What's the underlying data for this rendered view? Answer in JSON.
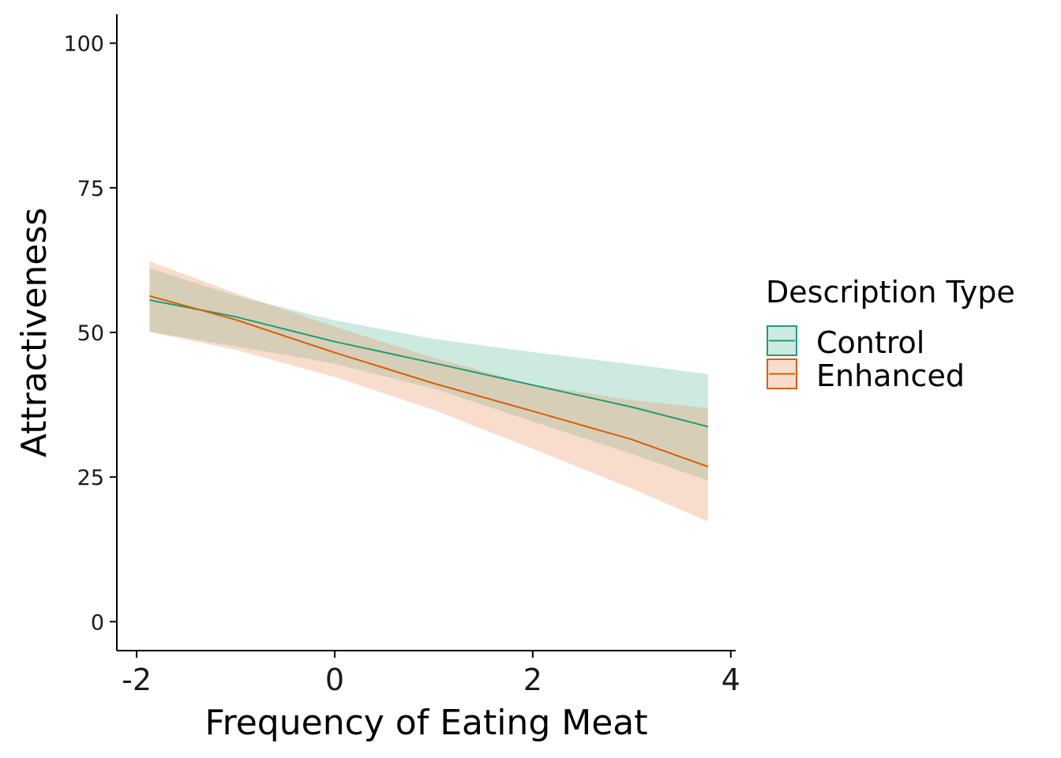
{
  "chart_data": {
    "type": "line",
    "title": "",
    "xlabel": "Frequency of Eating Meat",
    "ylabel": "Attractiveness",
    "xlim": [
      -2.2,
      4.05
    ],
    "ylim": [
      -5,
      105
    ],
    "x_ticks": [
      -2,
      0,
      2,
      4
    ],
    "x_tick_labels": [
      "-2",
      "0",
      "2",
      "4"
    ],
    "y_ticks": [
      0,
      25,
      50,
      75,
      100
    ],
    "y_tick_labels": [
      "0",
      "25",
      "50",
      "75",
      "100"
    ],
    "grid": false,
    "legend": {
      "title": "Description Type",
      "position": "right",
      "entries": [
        "Control",
        "Enhanced"
      ]
    },
    "series": [
      {
        "name": "Control",
        "color": "#1b9e77",
        "fill": "#1b9e77",
        "fill_opacity": 0.22,
        "x": [
          -1.87,
          -1,
          0,
          1,
          2,
          3,
          3.77
        ],
        "y": [
          55.6,
          52.7,
          48.4,
          44.7,
          40.9,
          37.1,
          33.7
        ],
        "lower": [
          50.1,
          47.6,
          44.6,
          40.3,
          34.6,
          29.0,
          24.4
        ],
        "upper": [
          61.1,
          56.3,
          52.1,
          48.9,
          46.6,
          44.5,
          42.8
        ]
      },
      {
        "name": "Enhanced",
        "color": "#d95f02",
        "fill": "#ec9b6c",
        "fill_opacity": 0.35,
        "x": [
          -1.87,
          -1,
          0,
          1,
          2,
          3,
          3.77
        ],
        "y": [
          56.3,
          52.2,
          46.5,
          41.2,
          36.4,
          31.5,
          26.8
        ],
        "lower": [
          50.1,
          47.0,
          42.3,
          36.6,
          29.9,
          23.0,
          17.3
        ],
        "upper": [
          62.3,
          56.8,
          51.0,
          45.6,
          41.0,
          38.3,
          36.9
        ]
      }
    ]
  }
}
